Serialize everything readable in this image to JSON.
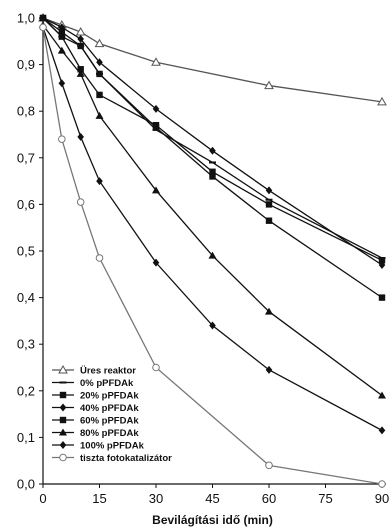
{
  "chart_data": {
    "type": "line",
    "title": "",
    "xlabel": "Bevilágítási idő (min)",
    "ylabel": "",
    "xlim": [
      0,
      90
    ],
    "ylim": [
      0,
      1.0
    ],
    "xticks": [
      0,
      15,
      30,
      45,
      60,
      75,
      90
    ],
    "xtick_labels": [
      "0",
      "15",
      "30",
      "45",
      "60",
      "75",
      "90"
    ],
    "yticks": [
      0,
      0.1,
      0.2,
      0.3,
      0.4,
      0.5,
      0.6,
      0.7,
      0.8,
      0.9,
      1.0
    ],
    "ytick_labels": [
      "0,0",
      "0,1",
      "0,2",
      "0,3",
      "0,4",
      "0,5",
      "0,6",
      "0,7",
      "0,8",
      "0,9",
      "1,0"
    ],
    "grid": false,
    "legend_position": "bottom-left",
    "series": [
      {
        "name": "Üres reaktor",
        "marker": "open-triangle",
        "color": "#555555",
        "x": [
          0,
          5,
          10,
          15,
          30,
          60,
          90
        ],
        "y": [
          1.0,
          0.985,
          0.97,
          0.945,
          0.905,
          0.855,
          0.82
        ]
      },
      {
        "name": "0% pPFDAk",
        "marker": "dash",
        "color": "#111111",
        "x": [
          0,
          5,
          10,
          15,
          30,
          45,
          60,
          90
        ],
        "y": [
          1.0,
          0.96,
          0.94,
          0.88,
          0.76,
          0.69,
          0.61,
          0.485
        ]
      },
      {
        "name": "20% pPFDAk",
        "marker": "square",
        "color": "#111111",
        "x": [
          0,
          5,
          10,
          15,
          30,
          45,
          60,
          90
        ],
        "y": [
          1.0,
          0.96,
          0.89,
          0.835,
          0.77,
          0.67,
          0.6,
          0.48
        ]
      },
      {
        "name": "40% pPFDAk",
        "marker": "diamond",
        "color": "#111111",
        "x": [
          0,
          5,
          10,
          15,
          30,
          45,
          60,
          90
        ],
        "y": [
          1.0,
          0.98,
          0.955,
          0.905,
          0.805,
          0.715,
          0.63,
          0.47
        ]
      },
      {
        "name": "60% pPFDAk",
        "marker": "square",
        "color": "#111111",
        "x": [
          0,
          5,
          10,
          15,
          30,
          45,
          60,
          90
        ],
        "y": [
          1.0,
          0.97,
          0.94,
          0.88,
          0.765,
          0.66,
          0.565,
          0.4
        ]
      },
      {
        "name": "80% pPFDAk",
        "marker": "triangle",
        "color": "#111111",
        "x": [
          0,
          5,
          10,
          15,
          30,
          45,
          60,
          90
        ],
        "y": [
          0.985,
          0.93,
          0.88,
          0.79,
          0.63,
          0.49,
          0.37,
          0.19
        ]
      },
      {
        "name": "100% pPFDAk",
        "marker": "diamond",
        "color": "#111111",
        "x": [
          0,
          5,
          10,
          15,
          30,
          45,
          60,
          90
        ],
        "y": [
          0.98,
          0.86,
          0.745,
          0.65,
          0.475,
          0.34,
          0.245,
          0.115
        ]
      },
      {
        "name": "tiszta fotokatalizátor",
        "marker": "open-circle",
        "color": "#777777",
        "x": [
          0,
          5,
          10,
          15,
          30,
          60,
          90
        ],
        "y": [
          0.98,
          0.74,
          0.605,
          0.485,
          0.25,
          0.04,
          0.0
        ]
      }
    ]
  }
}
